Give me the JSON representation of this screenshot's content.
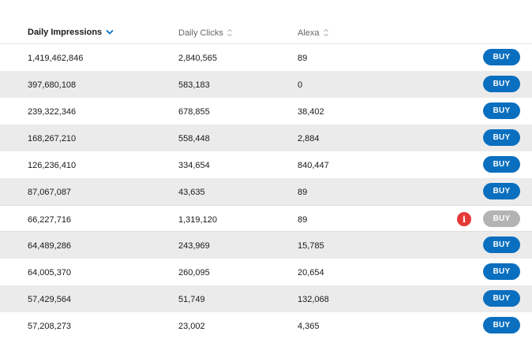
{
  "colors": {
    "accent": "#0a6fbf",
    "disabled": "#b3b3b3",
    "warning": "#e53935",
    "stripe": "#ebebeb"
  },
  "header": {
    "columns": [
      {
        "label": "Daily Impressions",
        "sort": "descending",
        "icon": "chevron-down-icon"
      },
      {
        "label": "Daily Clicks",
        "sort": "none",
        "icon": "sort-icon"
      },
      {
        "label": "Alexa",
        "sort": "none",
        "icon": "sort-icon"
      }
    ]
  },
  "rows": [
    {
      "impressions": "1,419,462,846",
      "clicks": "2,840,565",
      "alexa": "89",
      "buy_label": "BUY",
      "disabled": false
    },
    {
      "impressions": "397,680,108",
      "clicks": "583,183",
      "alexa": "0",
      "buy_label": "BUY",
      "disabled": false
    },
    {
      "impressions": "239,322,346",
      "clicks": "678,855",
      "alexa": "38,402",
      "buy_label": "BUY",
      "disabled": false
    },
    {
      "impressions": "168,267,210",
      "clicks": "558,448",
      "alexa": "2,884",
      "buy_label": "BUY",
      "disabled": false
    },
    {
      "impressions": "126,236,410",
      "clicks": "334,654",
      "alexa": "840,447",
      "buy_label": "BUY",
      "disabled": false
    },
    {
      "impressions": "87,067,087",
      "clicks": "43,635",
      "alexa": "89",
      "buy_label": "BUY",
      "disabled": false
    },
    {
      "impressions": "66,227,716",
      "clicks": "1,319,120",
      "alexa": "89",
      "buy_label": "BUY",
      "disabled": true,
      "info_icon": "i"
    },
    {
      "impressions": "64,489,286",
      "clicks": "243,969",
      "alexa": "15,785",
      "buy_label": "BUY",
      "disabled": false
    },
    {
      "impressions": "64,005,370",
      "clicks": "260,095",
      "alexa": "20,654",
      "buy_label": "BUY",
      "disabled": false
    },
    {
      "impressions": "57,429,564",
      "clicks": "51,749",
      "alexa": "132,068",
      "buy_label": "BUY",
      "disabled": false
    },
    {
      "impressions": "57,208,273",
      "clicks": "23,002",
      "alexa": "4,365",
      "buy_label": "BUY",
      "disabled": false
    }
  ]
}
